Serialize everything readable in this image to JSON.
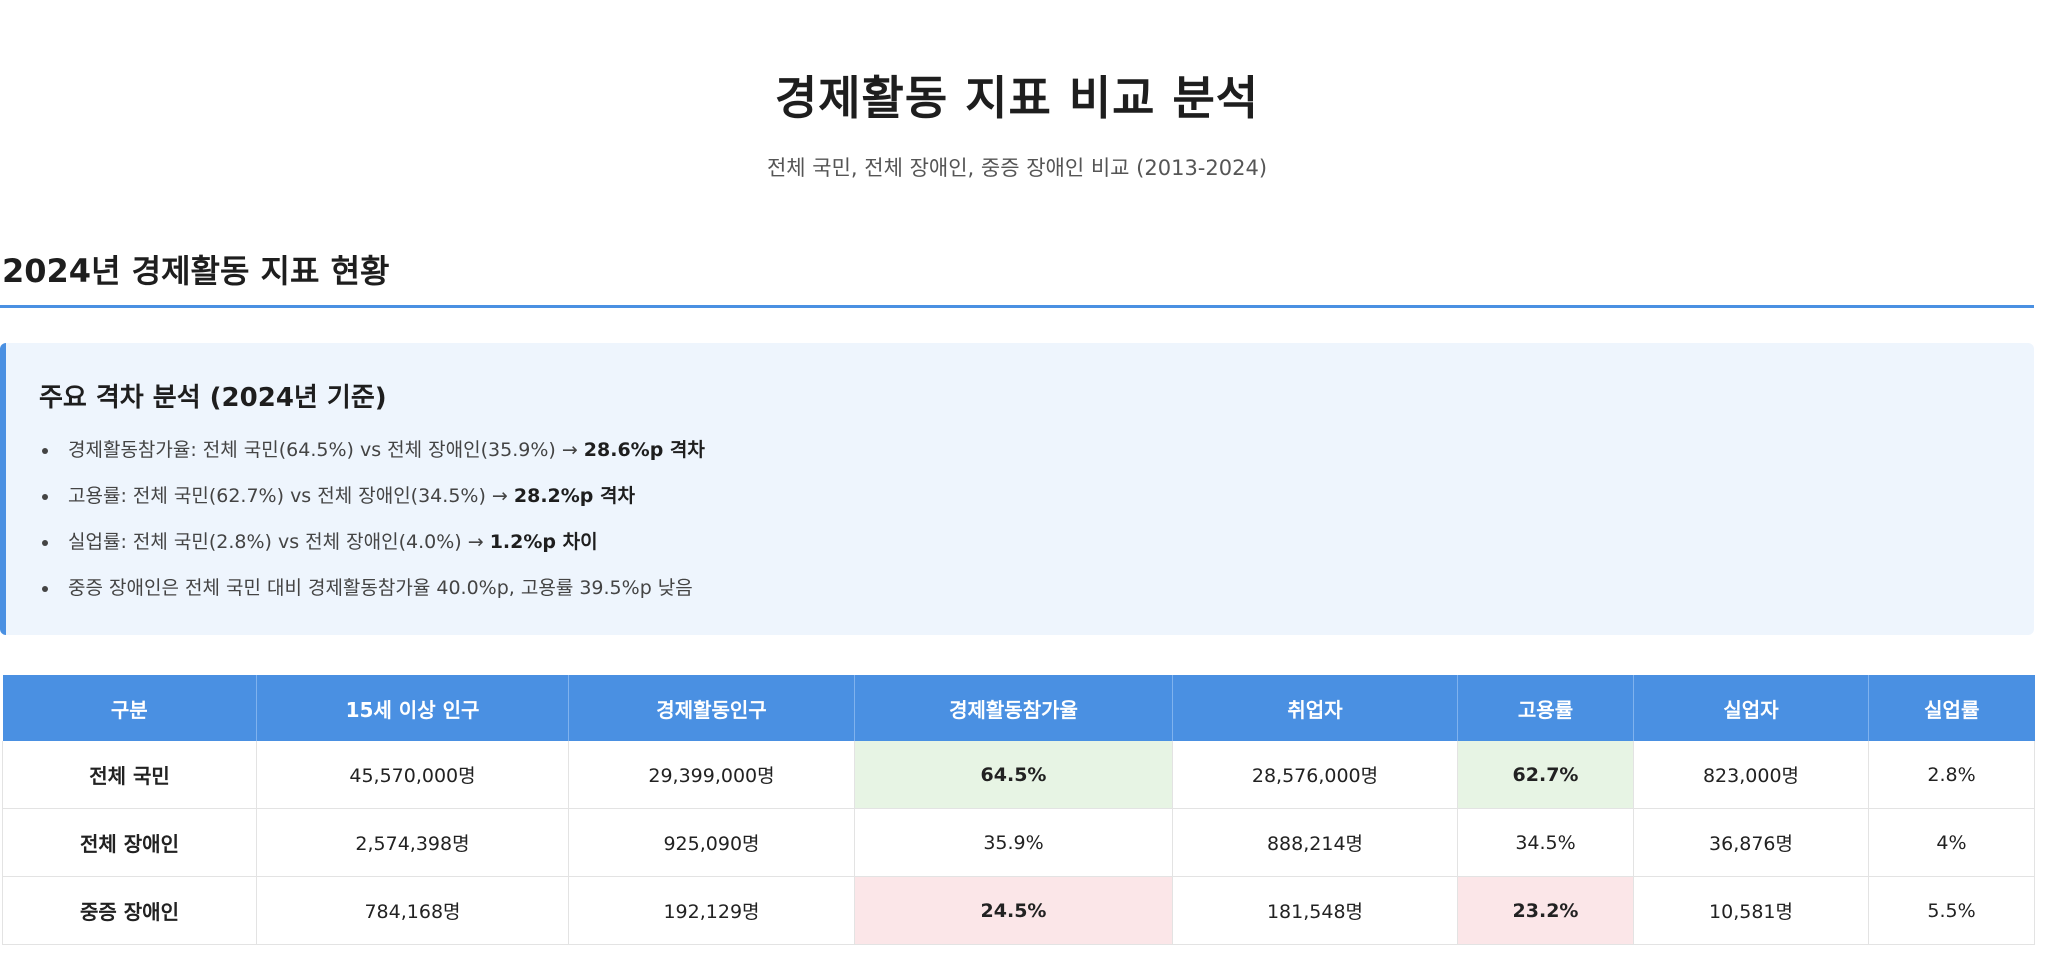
{
  "header": {
    "title": "경제활동 지표 비교 분석",
    "subtitle": "전체 국민, 전체 장애인, 중증 장애인 비교 (2013-2024)"
  },
  "section": {
    "title": "2024년 경제활동 지표 현황"
  },
  "gap_analysis": {
    "title": "주요 격차 분석 (2024년 기준)",
    "items": [
      {
        "text": "경제활동참가율: 전체 국민(64.5%) vs 전체 장애인(35.9%) → ",
        "emphasis": "28.6%p 격차"
      },
      {
        "text": "고용률: 전체 국민(62.7%) vs 전체 장애인(34.5%) → ",
        "emphasis": "28.2%p 격차"
      },
      {
        "text": "실업률: 전체 국민(2.8%) vs 전체 장애인(4.0%) → ",
        "emphasis": "1.2%p 차이"
      },
      {
        "text": "중증 장애인은 전체 국민 대비 경제활동참가율 40.0%p, 고용률 39.5%p 낮음",
        "emphasis": ""
      }
    ]
  },
  "table": {
    "headers": [
      "구분",
      "15세 이상 인구",
      "경제활동인구",
      "경제활동참가율",
      "취업자",
      "고용률",
      "실업자",
      "실업률"
    ],
    "rows": [
      [
        "전체 국민",
        "45,570,000명",
        "29,399,000명",
        "64.5%",
        "28,576,000명",
        "62.7%",
        "823,000명",
        "2.8%"
      ],
      [
        "전체 장애인",
        "2,574,398명",
        "925,090명",
        "35.9%",
        "888,214명",
        "34.5%",
        "36,876명",
        "4%"
      ],
      [
        "중증 장애인",
        "784,168명",
        "192,129명",
        "24.5%",
        "181,548명",
        "23.2%",
        "10,581명",
        "5.5%"
      ]
    ]
  },
  "colors": {
    "accent": "#4a90e2",
    "highlight_high": "#e7f4e4",
    "highlight_low": "#fbe6e8",
    "box_background": "#eef5fd"
  }
}
